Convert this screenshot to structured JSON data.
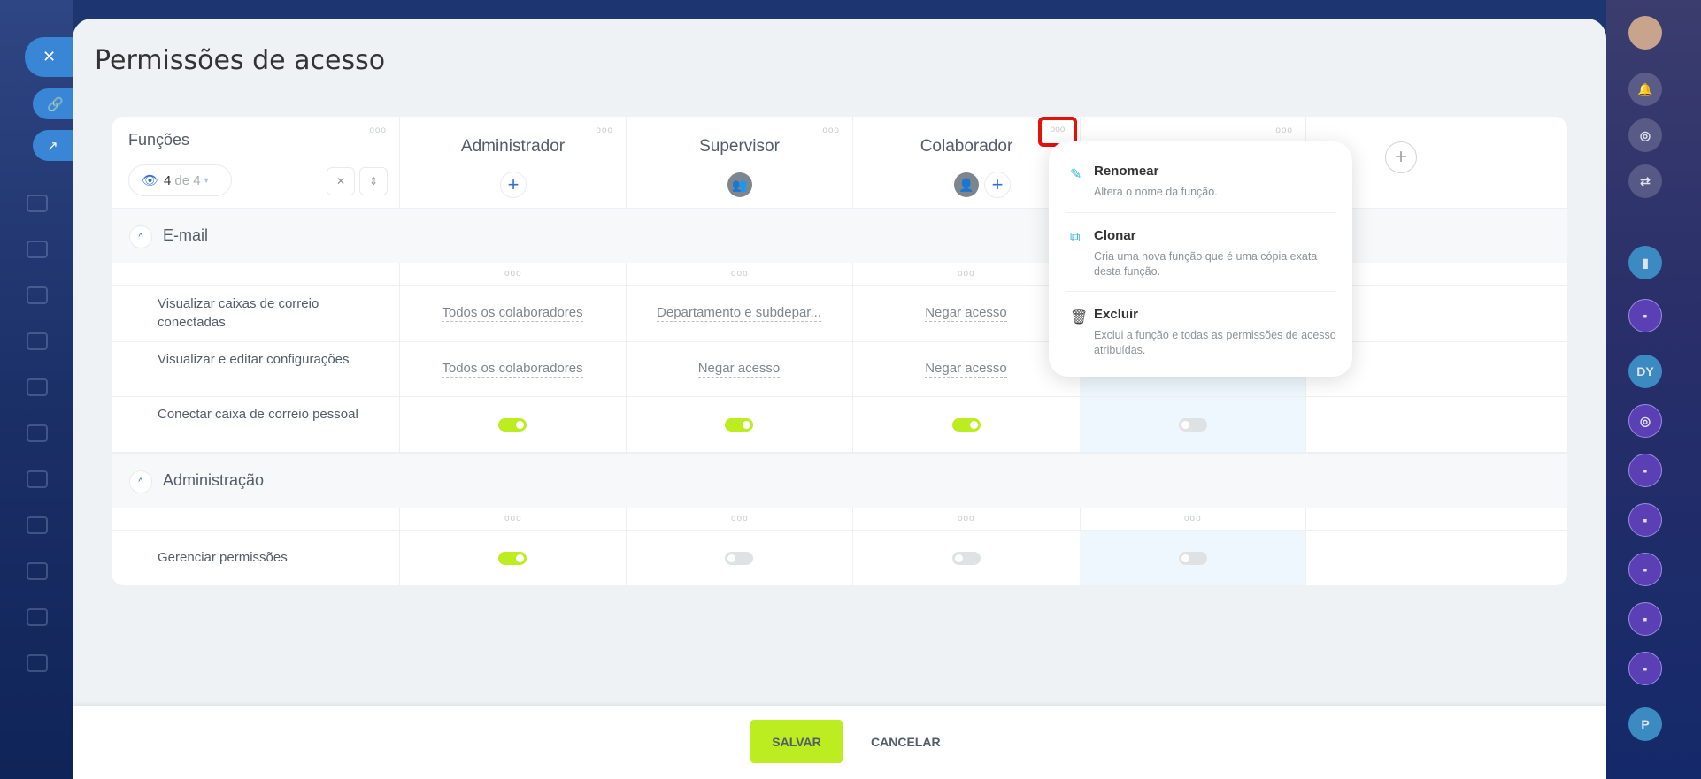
{
  "page_title": "Permissões de acesso",
  "roles_header": {
    "label": "Funções",
    "visible_count": "4",
    "visible_of": "de 4"
  },
  "columns": [
    {
      "name": "Administrador"
    },
    {
      "name": "Supervisor"
    },
    {
      "name": "Colaborador"
    },
    {
      "name": ""
    }
  ],
  "sections": [
    {
      "label": "E-mail",
      "rows": [
        {
          "label": "Visualizar caixas de correio conectadas",
          "values": [
            "Todos os colaboradores",
            "Departamento e subdepar...",
            "Negar acesso",
            ""
          ]
        },
        {
          "label": "Visualizar e editar configurações",
          "values": [
            "Todos os colaboradores",
            "Negar acesso",
            "Negar acesso",
            ""
          ]
        },
        {
          "label": "Conectar caixa de correio pessoal",
          "toggles": [
            true,
            true,
            true,
            false
          ]
        }
      ]
    },
    {
      "label": "Administração",
      "rows": [
        {
          "label": "Gerenciar permissões",
          "toggles": [
            true,
            false,
            false,
            false
          ]
        }
      ]
    }
  ],
  "context_menu": {
    "items": [
      {
        "icon": "pencil-icon",
        "title": "Renomear",
        "desc": "Altera o nome da função."
      },
      {
        "icon": "copy-icon",
        "title": "Clonar",
        "desc": "Cria uma nova função que é uma cópia exata desta função."
      },
      {
        "icon": "trash-icon",
        "title": "Excluir",
        "desc": "Exclui a função e todas as permissões de acesso atribuídas."
      }
    ]
  },
  "footer": {
    "save": "SALVAR",
    "cancel": "CANCELAR"
  },
  "right_sidebar": {
    "badges": [
      "DY",
      "P"
    ]
  },
  "colors": {
    "accent_green": "#bbed21",
    "accent_blue": "#2f6fd6",
    "highlight": "#e3120b"
  }
}
